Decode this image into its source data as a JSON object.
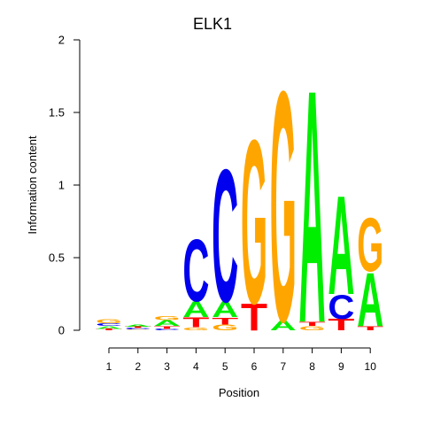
{
  "chart_data": {
    "type": "sequence-logo",
    "title": "ELK1",
    "xlabel": "Position",
    "ylabel": "Information content",
    "ylim": [
      0,
      2
    ],
    "yticks": [
      "0",
      "0.5",
      "1",
      "1.5",
      "2"
    ],
    "positions": [
      "1",
      "2",
      "3",
      "4",
      "5",
      "6",
      "7",
      "8",
      "9",
      "10"
    ],
    "colors": {
      "A": "#00ee00",
      "C": "#0000ee",
      "G": "#ffa500",
      "T": "#ff0000"
    },
    "stacks": [
      [
        {
          "letter": "T",
          "height": 0.01
        },
        {
          "letter": "A",
          "height": 0.02
        },
        {
          "letter": "C",
          "height": 0.02
        },
        {
          "letter": "G",
          "height": 0.03
        }
      ],
      [
        {
          "letter": "G",
          "height": 0.005
        },
        {
          "letter": "C",
          "height": 0.01
        },
        {
          "letter": "T",
          "height": 0.01
        },
        {
          "letter": "A",
          "height": 0.015
        }
      ],
      [
        {
          "letter": "C",
          "height": 0.01
        },
        {
          "letter": "T",
          "height": 0.02
        },
        {
          "letter": "A",
          "height": 0.04
        },
        {
          "letter": "G",
          "height": 0.03
        }
      ],
      [
        {
          "letter": "G",
          "height": 0.02
        },
        {
          "letter": "T",
          "height": 0.07
        },
        {
          "letter": "A",
          "height": 0.11
        },
        {
          "letter": "C",
          "height": 0.44
        }
      ],
      [
        {
          "letter": "G",
          "height": 0.04
        },
        {
          "letter": "T",
          "height": 0.05
        },
        {
          "letter": "A",
          "height": 0.11
        },
        {
          "letter": "C",
          "height": 0.94
        }
      ],
      [
        {
          "letter": "T",
          "height": 0.19
        },
        {
          "letter": "G",
          "height": 1.16
        }
      ],
      [
        {
          "letter": "A",
          "height": 0.07
        },
        {
          "letter": "G",
          "height": 1.63
        }
      ],
      [
        {
          "letter": "G",
          "height": 0.03
        },
        {
          "letter": "T",
          "height": 0.03
        },
        {
          "letter": "A",
          "height": 1.65
        }
      ],
      [
        {
          "letter": "T",
          "height": 0.08
        },
        {
          "letter": "C",
          "height": 0.17
        },
        {
          "letter": "A",
          "height": 0.7
        }
      ],
      [
        {
          "letter": "T",
          "height": 0.03
        },
        {
          "letter": "A",
          "height": 0.38
        },
        {
          "letter": "G",
          "height": 0.38
        }
      ]
    ]
  }
}
